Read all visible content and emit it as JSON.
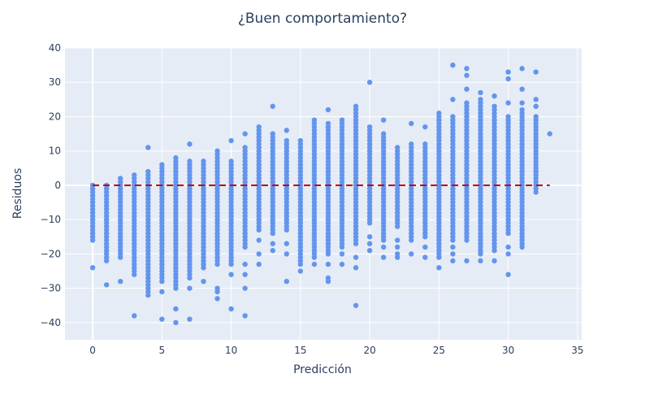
{
  "chart_data": {
    "type": "scatter",
    "title": "¿Buen comportamiento?",
    "xlabel": "Predicción",
    "ylabel": "Residuos",
    "xlim": [
      -2,
      35.3
    ],
    "ylim": [
      -45,
      40
    ],
    "x_ticks": [
      0,
      5,
      10,
      15,
      20,
      25,
      30,
      35
    ],
    "y_ticks": [
      -40,
      -30,
      -20,
      -10,
      0,
      10,
      20,
      30,
      40
    ],
    "grid": true,
    "colors": {
      "plot_background": "#E5ECF6",
      "grid": "#ffffff",
      "marker": "#6495ED",
      "reference_line": "#C00000",
      "text": "#2a3f5f"
    },
    "reference_line": {
      "y": 0,
      "x_range": [
        0,
        33
      ],
      "style": "dashed"
    },
    "series": [
      {
        "columns": [
          {
            "x": 0,
            "min": -16,
            "max": 0,
            "outliers": [
              -24
            ]
          },
          {
            "x": 1,
            "min": -22,
            "max": 0,
            "outliers": [
              -29
            ]
          },
          {
            "x": 2,
            "min": -21,
            "max": 2,
            "outliers": [
              -28
            ]
          },
          {
            "x": 3,
            "min": -26,
            "max": 3,
            "outliers": [
              -38
            ]
          },
          {
            "x": 4,
            "min": -32,
            "max": 4,
            "outliers": [
              11
            ]
          },
          {
            "x": 5,
            "min": -28,
            "max": 6,
            "outliers": [
              -31,
              -39
            ]
          },
          {
            "x": 6,
            "min": -30,
            "max": 8,
            "outliers": [
              -36,
              -40
            ]
          },
          {
            "x": 7,
            "min": -27,
            "max": 7,
            "outliers": [
              12,
              -30,
              -39
            ]
          },
          {
            "x": 8,
            "min": -24,
            "max": 7,
            "outliers": [
              -28
            ]
          },
          {
            "x": 9,
            "min": -23,
            "max": 10,
            "outliers": [
              -30,
              -31,
              -33
            ]
          },
          {
            "x": 10,
            "min": -23,
            "max": 7,
            "outliers": [
              13,
              -26,
              -36
            ]
          },
          {
            "x": 11,
            "min": -18,
            "max": 11,
            "outliers": [
              15,
              -23,
              -26,
              -30,
              -38
            ]
          },
          {
            "x": 12,
            "min": -13,
            "max": 17,
            "outliers": [
              -16,
              -20,
              -23
            ]
          },
          {
            "x": 13,
            "min": -14,
            "max": 15,
            "outliers": [
              23,
              -17,
              -19
            ]
          },
          {
            "x": 14,
            "min": -13,
            "max": 13,
            "outliers": [
              16,
              -17,
              -20,
              -28
            ]
          },
          {
            "x": 15,
            "min": -23,
            "max": 13,
            "outliers": [
              -25
            ]
          },
          {
            "x": 16,
            "min": -21,
            "max": 19,
            "outliers": [
              -23
            ]
          },
          {
            "x": 17,
            "min": -20,
            "max": 18,
            "outliers": [
              22,
              -23,
              -27,
              -28
            ]
          },
          {
            "x": 18,
            "min": -18,
            "max": 19,
            "outliers": [
              -20,
              -23
            ]
          },
          {
            "x": 19,
            "min": -17,
            "max": 22,
            "outliers": [
              23,
              -21,
              -24,
              -35
            ]
          },
          {
            "x": 20,
            "min": -11,
            "max": 17,
            "outliers": [
              30,
              -15,
              -17,
              -19
            ]
          },
          {
            "x": 21,
            "min": -16,
            "max": 15,
            "outliers": [
              19,
              -18,
              -21
            ]
          },
          {
            "x": 22,
            "min": -12,
            "max": 11,
            "outliers": [
              -16,
              -18,
              -20,
              -21
            ]
          },
          {
            "x": 23,
            "min": -16,
            "max": 12,
            "outliers": [
              18,
              -20
            ]
          },
          {
            "x": 24,
            "min": -15,
            "max": 12,
            "outliers": [
              17,
              -18,
              -21
            ]
          },
          {
            "x": 25,
            "min": -21,
            "max": 21,
            "outliers": [
              -24
            ]
          },
          {
            "x": 26,
            "min": -16,
            "max": 20,
            "outliers": [
              25,
              35,
              -18,
              -20,
              -22
            ]
          },
          {
            "x": 27,
            "min": -16,
            "max": 24,
            "outliers": [
              28,
              32,
              34,
              -22
            ]
          },
          {
            "x": 28,
            "min": -20,
            "max": 25,
            "outliers": [
              27,
              -22
            ]
          },
          {
            "x": 29,
            "min": -19,
            "max": 23,
            "outliers": [
              26,
              -22
            ]
          },
          {
            "x": 30,
            "min": -14,
            "max": 20,
            "outliers": [
              24,
              31,
              33,
              -18,
              -20,
              -26
            ]
          },
          {
            "x": 31,
            "min": -18,
            "max": 22,
            "outliers": [
              24,
              28,
              34,
              -13,
              -15
            ]
          },
          {
            "x": 32,
            "min": -2,
            "max": 20,
            "outliers": [
              23,
              25,
              33,
              4,
              12
            ]
          },
          {
            "x": 33,
            "min": 15,
            "max": 15,
            "outliers": []
          }
        ]
      }
    ]
  }
}
